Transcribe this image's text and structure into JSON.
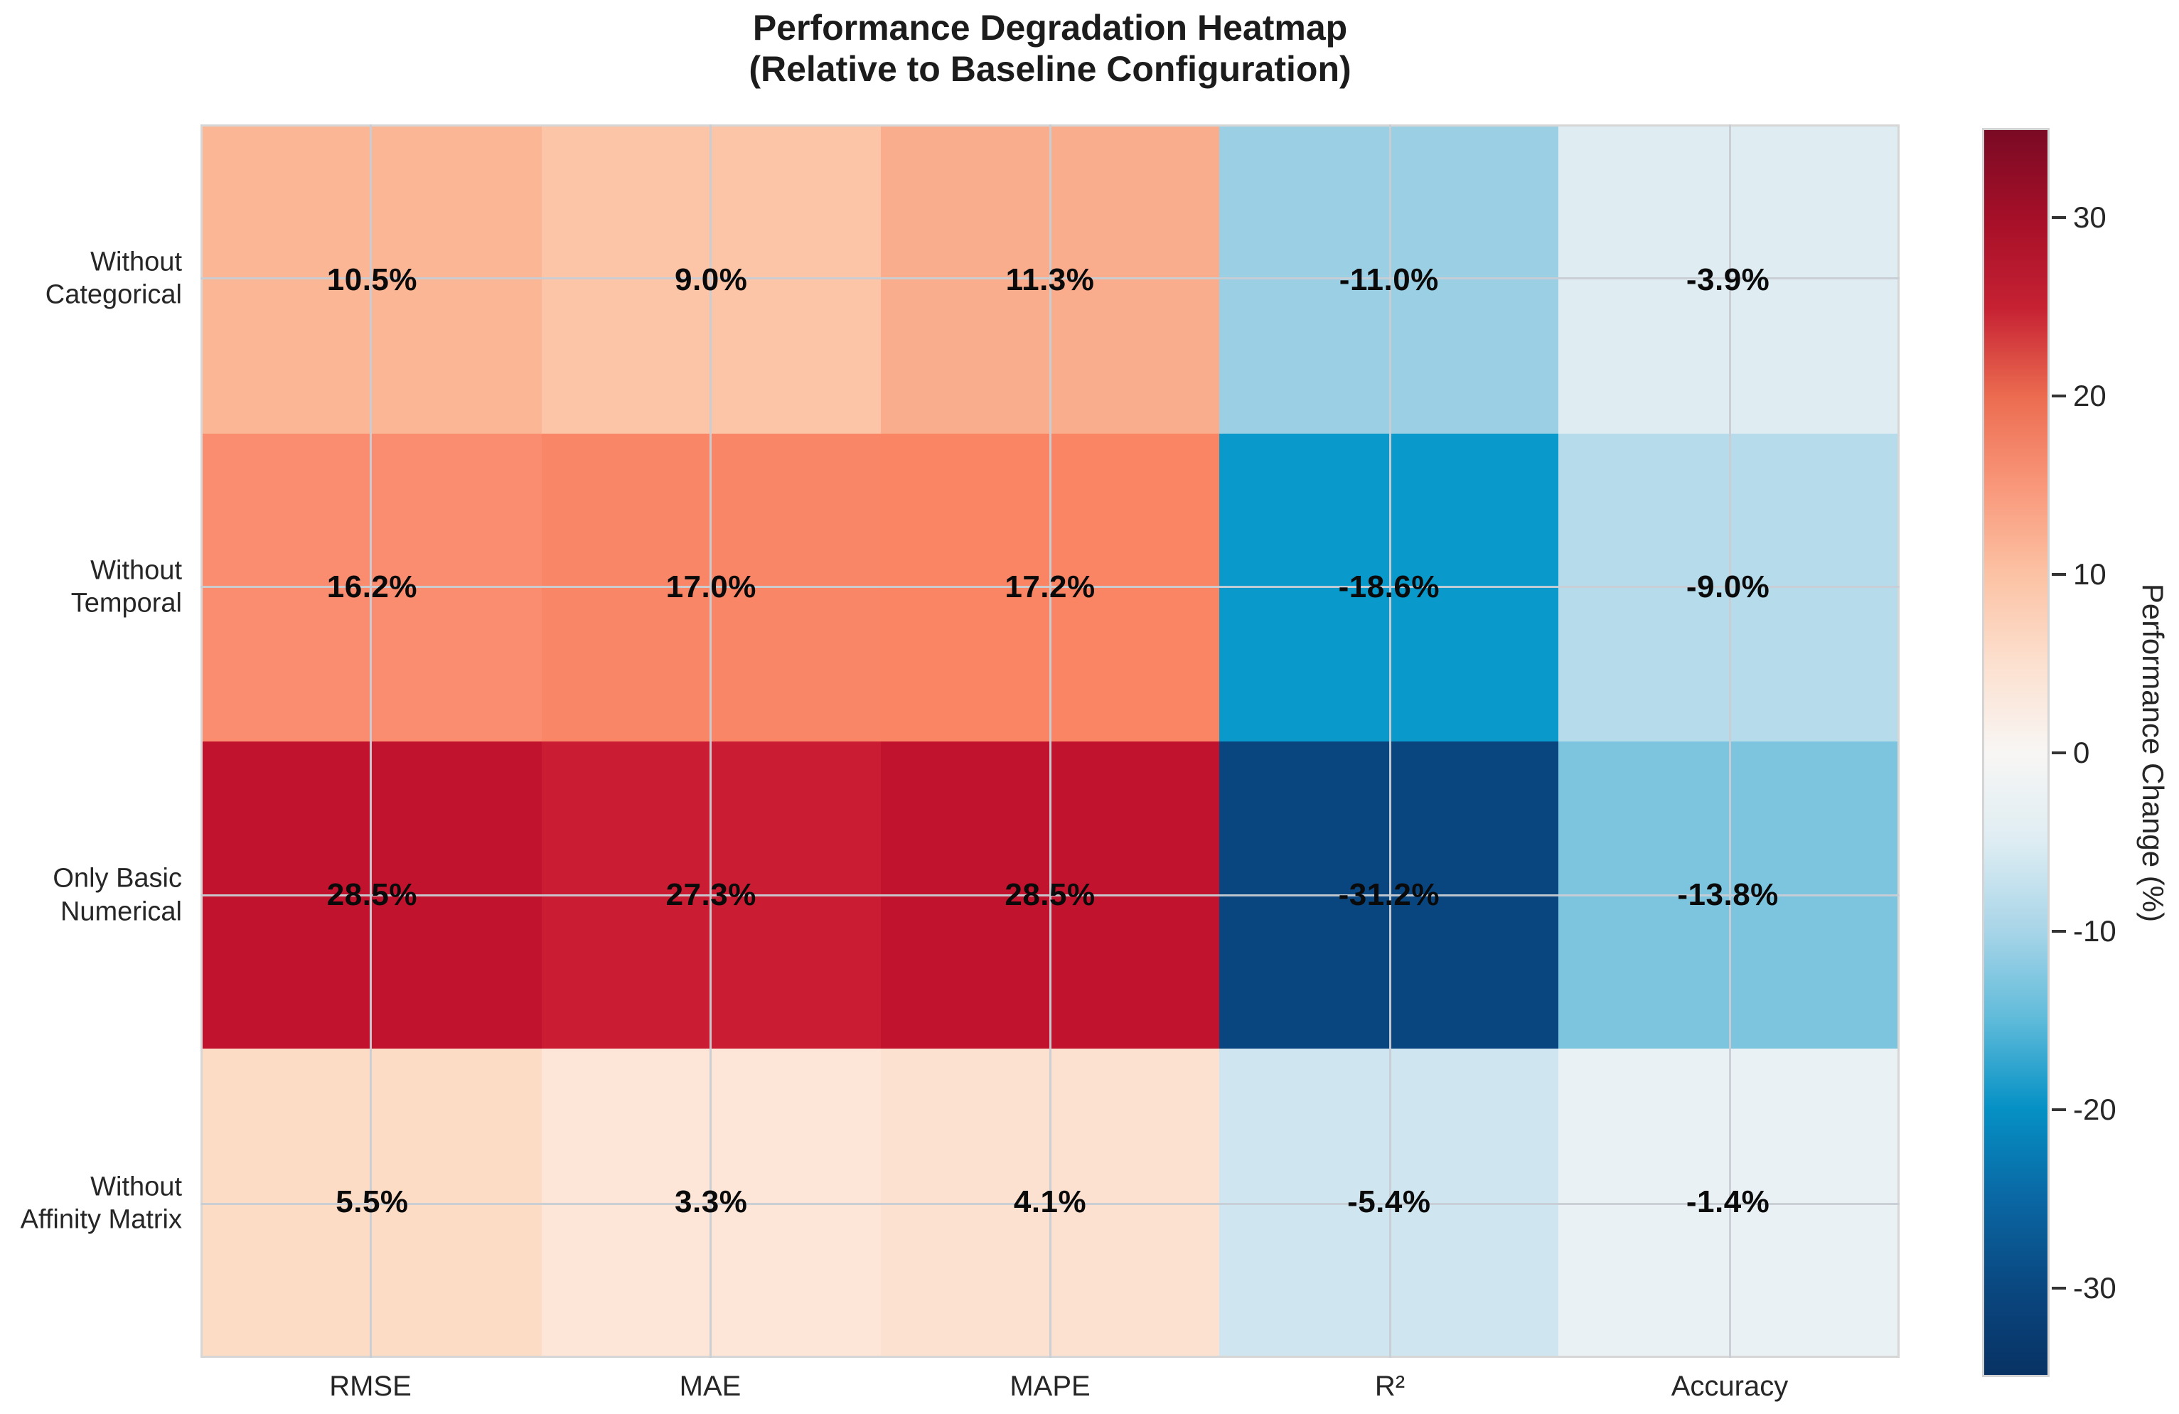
{
  "title": {
    "line1": "Performance Degradation Heatmap",
    "line2": "(Relative to Baseline Configuration)"
  },
  "chart_data": {
    "type": "heatmap",
    "title": "Performance Degradation Heatmap (Relative to Baseline Configuration)",
    "rows": [
      "Without Categorical",
      "Without Temporal",
      "Only Basic Numerical",
      "Without Affinity Matrix"
    ],
    "row_labels_display": [
      "Without\nCategorical",
      "Without\nTemporal",
      "Only Basic\nNumerical",
      "Without\nAffinity Matrix"
    ],
    "columns": [
      "RMSE",
      "MAE",
      "MAPE",
      "R²",
      "Accuracy"
    ],
    "values": [
      [
        10.5,
        9.0,
        11.3,
        -11.0,
        -3.9
      ],
      [
        16.2,
        17.0,
        17.2,
        -18.6,
        -9.0
      ],
      [
        28.5,
        27.3,
        28.5,
        -31.2,
        -13.8
      ],
      [
        5.5,
        3.3,
        4.1,
        -5.4,
        -1.4
      ]
    ],
    "cell_labels": [
      [
        "10.5%",
        "9.0%",
        "11.3%",
        "-11.0%",
        "-3.9%"
      ],
      [
        "16.2%",
        "17.0%",
        "17.2%",
        "-18.6%",
        "-9.0%"
      ],
      [
        "28.5%",
        "27.3%",
        "28.5%",
        "-31.2%",
        "-13.8%"
      ],
      [
        "5.5%",
        "3.3%",
        "4.1%",
        "-5.4%",
        "-1.4%"
      ]
    ],
    "cell_colors": [
      [
        "#FBB696",
        "#FCC5A8",
        "#FAAD8D",
        "#9BCFE3",
        "#DFEDF3"
      ],
      [
        "#FA8D6F",
        "#F98666",
        "#F98565",
        "#0999CB",
        "#B6DBEB"
      ],
      [
        "#C1132D",
        "#CA1C32",
        "#C1132D",
        "#09457E",
        "#7DC5DF"
      ],
      [
        "#FDDCC6",
        "#FDE6D8",
        "#FDE1D0",
        "#CFE6F0",
        "#E9F1F4"
      ]
    ],
    "grid_on": true,
    "colorbar": {
      "label": "Performance Change (%)",
      "vmin": -35,
      "vmax": 35,
      "ticks": [
        30,
        20,
        10,
        0,
        -10,
        -20,
        -30
      ],
      "gradient": [
        {
          "v": 35,
          "c": "#7A0A24"
        },
        {
          "v": 30,
          "c": "#A60F28"
        },
        {
          "v": 25,
          "c": "#C62133"
        },
        {
          "v": 20,
          "c": "#EC6C50"
        },
        {
          "v": 15,
          "c": "#F9977A"
        },
        {
          "v": 10,
          "c": "#FCC2A4"
        },
        {
          "v": 5,
          "c": "#FCE0CF"
        },
        {
          "v": 0,
          "c": "#F8F6F4"
        },
        {
          "v": -5,
          "c": "#DEEDF3"
        },
        {
          "v": -10,
          "c": "#A8D5E8"
        },
        {
          "v": -15,
          "c": "#5FBBDA"
        },
        {
          "v": -20,
          "c": "#0591C5"
        },
        {
          "v": -25,
          "c": "#0A68A4"
        },
        {
          "v": -30,
          "c": "#0A4881"
        },
        {
          "v": -35,
          "c": "#083264"
        }
      ]
    }
  },
  "style": {
    "background": "#ffffff",
    "grid_color": "rgba(200,206,212,0.95)",
    "plot_border_color": "#d6d6d6",
    "tick_text_color": "#262626",
    "value_text_color": "#0a0a0a",
    "title_color": "#1c1c1c"
  }
}
